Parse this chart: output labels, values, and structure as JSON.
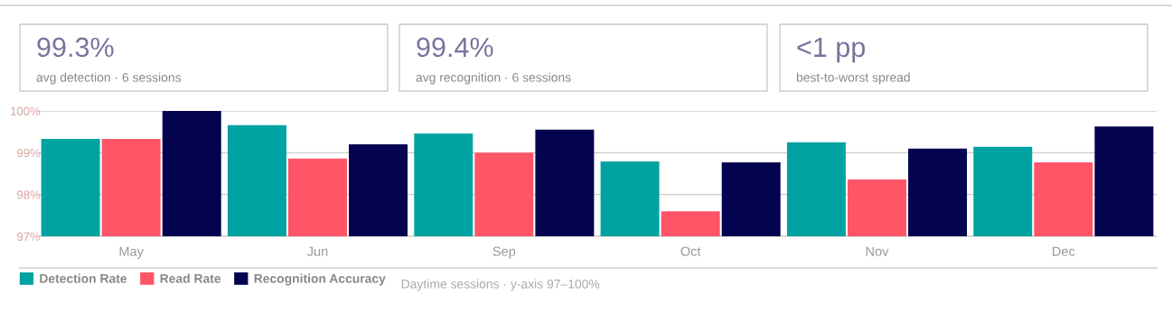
{
  "chart_data": {
    "type": "bar",
    "categories": [
      "May",
      "Jun",
      "Sep",
      "Oct",
      "Nov",
      "Dec"
    ],
    "series": [
      {
        "name": "Detection Rate",
        "color": "#00a3a1",
        "values": [
          99.33,
          99.66,
          99.46,
          98.79,
          99.25,
          99.14
        ]
      },
      {
        "name": "Read Rate",
        "color": "#ff5566",
        "values": [
          99.33,
          98.86,
          99.0,
          97.6,
          98.36,
          98.77
        ]
      },
      {
        "name": "Recognition Accuracy",
        "color": "#03034f",
        "values": [
          100.0,
          99.2,
          99.55,
          98.77,
          99.1,
          99.63
        ]
      }
    ],
    "ylim": [
      97,
      100
    ],
    "yticks": [
      {
        "value": 97,
        "label": "97%"
      },
      {
        "value": 98,
        "label": "98%"
      },
      {
        "value": 99,
        "label": "99%"
      },
      {
        "value": 100,
        "label": "100%"
      }
    ],
    "grid": "y",
    "legend": "bottom",
    "annotations": [
      "99.3%",
      "avg detection · 6 sessions",
      "99.4%",
      "avg recognition · 6 sessions",
      "<1 pp",
      "best-to-worst spread",
      "Daytime sessions · y-axis 97–100%"
    ]
  }
}
